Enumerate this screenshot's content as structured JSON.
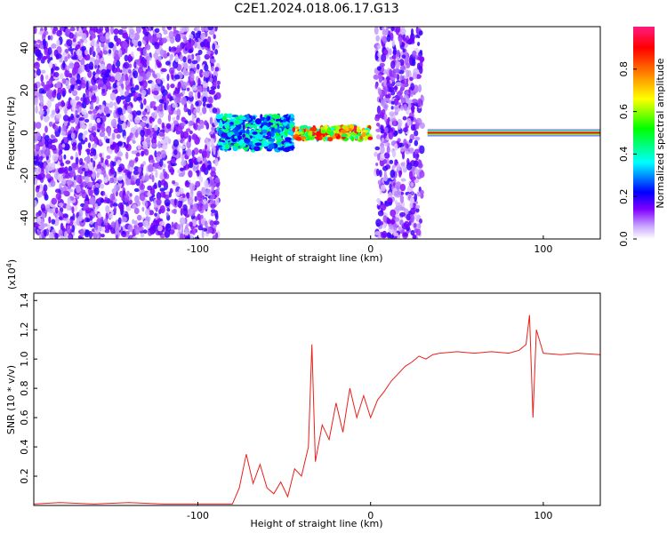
{
  "title": "C2E1.2024.018.06.17.G13",
  "chart_data": [
    {
      "type": "heatmap",
      "xlabel": "Height of straight line (km)",
      "ylabel": "Frequency (Hz)",
      "xlim": [
        -195,
        133
      ],
      "ylim": [
        -50,
        50
      ],
      "x_ticks": [
        -100,
        0,
        100
      ],
      "x_tick_labels": [
        "-100",
        "0",
        "100"
      ],
      "y_ticks": [
        -40,
        -20,
        0,
        20,
        40
      ],
      "y_tick_labels": [
        "-40",
        "-20",
        "0",
        "20",
        "40"
      ],
      "colorbar": {
        "label": "Normalized spectral amplitude",
        "range": [
          0,
          1
        ],
        "ticks": [
          0.0,
          0.2,
          0.4,
          0.6,
          0.8
        ],
        "tick_labels": [
          "0.0",
          "0.2",
          "0.4",
          "0.6",
          "0.8"
        ],
        "colors": [
          "#ffffff",
          "#8000ff",
          "#0000ff",
          "#00ffff",
          "#00ff00",
          "#ffff00",
          "#ff8000",
          "#ff0000",
          "#ff0080"
        ]
      },
      "regions": [
        {
          "x_range": [
            -195,
            -88
          ],
          "y_range": [
            -50,
            50
          ],
          "level": 0.15,
          "pattern": "noise"
        },
        {
          "x_range": [
            -88,
            -45
          ],
          "y_range": [
            -8,
            8
          ],
          "level": 0.35,
          "pattern": "band"
        },
        {
          "x_range": [
            -45,
            0
          ],
          "y_range": [
            -3,
            3
          ],
          "level": 0.7,
          "pattern": "band"
        },
        {
          "x_range": [
            3,
            30
          ],
          "y_range": [
            -50,
            50
          ],
          "level": 0.15,
          "pattern": "noise"
        },
        {
          "x_range": [
            33,
            133
          ],
          "y_range": [
            -2,
            2
          ],
          "level": 0.9,
          "pattern": "line"
        }
      ]
    },
    {
      "type": "line",
      "xlabel": "Height of straight line (km)",
      "ylabel": "SNR (10 * v/v)",
      "y_multiplier": "(x10",
      "y_multiplier_exp": "4",
      "y_multiplier_close": ")",
      "xlim": [
        -195,
        133
      ],
      "ylim": [
        0,
        1.45
      ],
      "x_ticks": [
        -100,
        0,
        100
      ],
      "x_tick_labels": [
        "-100",
        "0",
        "100"
      ],
      "y_ticks": [
        0.2,
        0.4,
        0.6,
        0.8,
        1.0,
        1.2,
        1.4
      ],
      "y_tick_labels": [
        "0.2",
        "0.4",
        "0.6",
        "0.8",
        "1.0",
        "1.2",
        "1.4"
      ],
      "color": "#e8201a",
      "series": [
        {
          "x": [
            -195,
            -180,
            -160,
            -140,
            -120,
            -100,
            -90,
            -80,
            -76,
            -72,
            -68,
            -64,
            -60,
            -56,
            -52,
            -48,
            -44,
            -40,
            -36,
            -34,
            -32,
            -28,
            -24,
            -20,
            -16,
            -12,
            -8,
            -4,
            0,
            4,
            8,
            12,
            16,
            20,
            24,
            28,
            32,
            36,
            40,
            50,
            60,
            70,
            80,
            86,
            90,
            92,
            94,
            96,
            100,
            110,
            120,
            133
          ],
          "y": [
            0.01,
            0.02,
            0.01,
            0.02,
            0.01,
            0.01,
            0.01,
            0.01,
            0.12,
            0.35,
            0.15,
            0.28,
            0.12,
            0.08,
            0.16,
            0.06,
            0.25,
            0.2,
            0.4,
            1.1,
            0.3,
            0.55,
            0.45,
            0.7,
            0.5,
            0.8,
            0.6,
            0.75,
            0.6,
            0.72,
            0.78,
            0.85,
            0.9,
            0.95,
            0.98,
            1.02,
            1.0,
            1.03,
            1.04,
            1.05,
            1.04,
            1.05,
            1.04,
            1.06,
            1.1,
            1.3,
            0.6,
            1.2,
            1.04,
            1.03,
            1.04,
            1.03
          ]
        }
      ]
    }
  ]
}
